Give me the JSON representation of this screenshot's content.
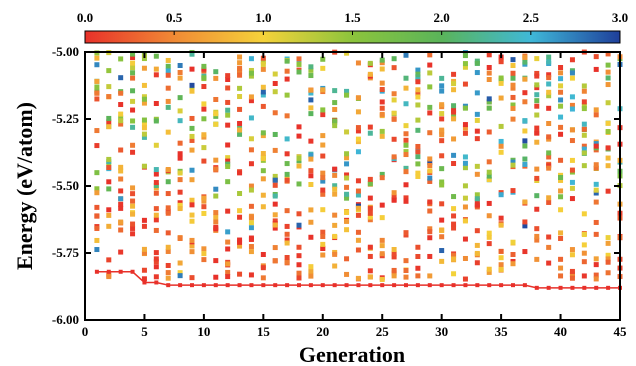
{
  "chart_data": {
    "type": "scatter",
    "title": "",
    "xlabel": "Generation",
    "ylabel": "Energy (eV/atom)",
    "xlim": [
      0,
      45
    ],
    "ylim": [
      -6.0,
      -5.0
    ],
    "x_ticks": [
      0,
      5,
      10,
      15,
      20,
      25,
      30,
      35,
      40,
      45
    ],
    "y_ticks": [
      -6.0,
      -5.75,
      -5.5,
      -5.25,
      -5.0
    ],
    "x_tick_labels": [
      "0",
      "5",
      "10",
      "15",
      "20",
      "25",
      "30",
      "35",
      "40",
      "45"
    ],
    "y_tick_labels": [
      "-6.00",
      "-5.75",
      "-5.50",
      "-5.25",
      "-5.00"
    ],
    "grid": false,
    "colorbar": {
      "placement": "top",
      "range": [
        0.0,
        3.0
      ],
      "tick_values": [
        0.0,
        0.5,
        1.0,
        1.5,
        2.0,
        2.5,
        3.0
      ],
      "tick_labels": [
        "0.0",
        "0.5",
        "1.0",
        "1.5",
        "2.0",
        "2.5",
        "3.0"
      ],
      "colors": [
        "#e8312a",
        "#f08a35",
        "#f5d23a",
        "#8cc43c",
        "#5ab45a",
        "#3fb8d8",
        "#1f3f9a"
      ]
    },
    "series": [
      {
        "kind": "best-energy-line",
        "color": "#e8312a",
        "x": [
          1,
          2,
          3,
          4,
          5,
          6,
          7,
          8,
          9,
          10,
          11,
          12,
          13,
          14,
          15,
          16,
          17,
          18,
          19,
          20,
          21,
          22,
          23,
          24,
          25,
          26,
          27,
          28,
          29,
          30,
          31,
          32,
          33,
          34,
          35,
          36,
          37,
          38,
          39,
          40,
          41,
          42,
          43,
          44,
          45
        ],
        "y": [
          -5.82,
          -5.82,
          -5.82,
          -5.82,
          -5.86,
          -5.86,
          -5.87,
          -5.87,
          -5.87,
          -5.87,
          -5.87,
          -5.87,
          -5.87,
          -5.87,
          -5.87,
          -5.87,
          -5.87,
          -5.87,
          -5.87,
          -5.87,
          -5.87,
          -5.87,
          -5.87,
          -5.87,
          -5.87,
          -5.87,
          -5.87,
          -5.87,
          -5.87,
          -5.87,
          -5.87,
          -5.87,
          -5.87,
          -5.87,
          -5.87,
          -5.87,
          -5.87,
          -5.88,
          -5.88,
          -5.88,
          -5.88,
          -5.88,
          -5.88,
          -5.88,
          -5.88
        ]
      },
      {
        "kind": "structures",
        "generations": [
          1,
          45
        ],
        "energy_range": [
          -5.87,
          -5.0
        ],
        "points_per_generation": 22,
        "color_value_range": [
          0.0,
          3.0
        ]
      }
    ]
  }
}
